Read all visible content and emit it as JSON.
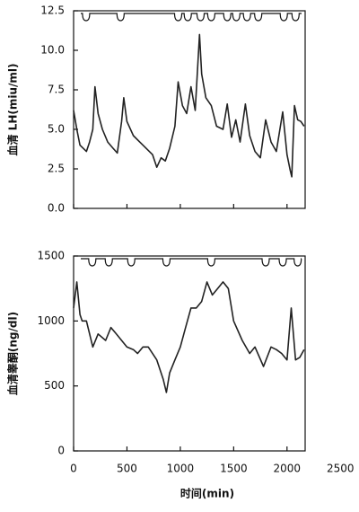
{
  "chart_data": [
    {
      "type": "line",
      "y_label": "血清 LH(miu/ml)",
      "xlim": [
        0,
        2170
      ],
      "ylim": [
        0,
        12.5
      ],
      "yticks": [
        {
          "value": 0,
          "label": "0.0"
        },
        2.5,
        {
          "value": 5,
          "label": "5.0"
        },
        7.5,
        {
          "value": 10,
          "label": "10.0"
        },
        12.5
      ],
      "pulse_times": [
        117,
        440,
        980,
        1070,
        1190,
        1290,
        1440,
        1525,
        1625,
        1730,
        1970,
        2080
      ],
      "x": [
        0,
        30,
        60,
        90,
        120,
        150,
        180,
        200,
        230,
        270,
        320,
        370,
        410,
        450,
        470,
        500,
        560,
        620,
        680,
        740,
        780,
        820,
        860,
        900,
        950,
        980,
        1020,
        1060,
        1100,
        1140,
        1180,
        1200,
        1240,
        1290,
        1340,
        1400,
        1440,
        1480,
        1520,
        1560,
        1610,
        1650,
        1700,
        1750,
        1800,
        1850,
        1900,
        1960,
        2000,
        2030,
        2045,
        2070,
        2100,
        2130,
        2160
      ],
      "series": [
        {
          "color": "#222222",
          "values": [
            6.2,
            5.0,
            4.0,
            3.8,
            3.6,
            4.2,
            5.0,
            7.7,
            6.0,
            5.0,
            4.2,
            3.8,
            3.5,
            5.5,
            7.0,
            5.5,
            4.6,
            4.2,
            3.8,
            3.4,
            2.6,
            3.2,
            3.0,
            3.8,
            5.2,
            8.0,
            6.5,
            6.0,
            7.7,
            6.2,
            11.0,
            8.5,
            7.0,
            6.5,
            5.2,
            5.0,
            6.6,
            4.5,
            5.6,
            4.2,
            6.6,
            4.6,
            3.6,
            3.2,
            5.6,
            4.2,
            3.6,
            6.1,
            3.4,
            2.4,
            2.0,
            6.5,
            5.6,
            5.5,
            5.2
          ]
        }
      ]
    },
    {
      "type": "line",
      "y_label": "血清睾酮(ng/dl)",
      "x_label": "时间(min)",
      "xlim": [
        0,
        2170
      ],
      "ylim": [
        0,
        1500
      ],
      "xticks": [
        0,
        500,
        1000,
        1500,
        2000,
        2500
      ],
      "yticks": [
        0,
        500,
        1000,
        1500
      ],
      "pulse_times": [
        175,
        330,
        540,
        870,
        1290,
        1800,
        1960,
        2100
      ],
      "x": [
        0,
        30,
        60,
        80,
        120,
        180,
        230,
        300,
        350,
        400,
        450,
        500,
        560,
        600,
        650,
        700,
        780,
        840,
        870,
        900,
        950,
        1000,
        1050,
        1100,
        1150,
        1200,
        1250,
        1300,
        1350,
        1400,
        1450,
        1500,
        1580,
        1650,
        1700,
        1780,
        1850,
        1900,
        1950,
        2000,
        2040,
        2080,
        2120,
        2160
      ],
      "series": [
        {
          "color": "#222222",
          "values": [
            1100,
            1300,
            1050,
            1000,
            1000,
            800,
            900,
            850,
            950,
            900,
            850,
            800,
            780,
            750,
            800,
            800,
            700,
            550,
            450,
            600,
            700,
            800,
            950,
            1100,
            1100,
            1150,
            1300,
            1200,
            1250,
            1300,
            1250,
            1000,
            850,
            750,
            800,
            650,
            800,
            780,
            750,
            700,
            1100,
            700,
            720,
            780
          ]
        }
      ]
    }
  ]
}
